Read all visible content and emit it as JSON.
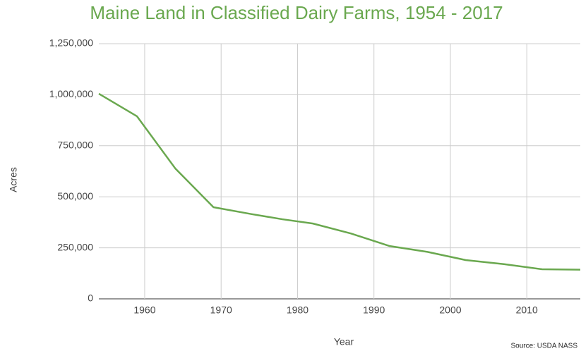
{
  "chart_data": {
    "type": "line",
    "title": "Maine Land in Classified Dairy Farms, 1954 - 2017",
    "x_label": "Year",
    "y_label": "Acres",
    "source": "Source: USDA NASS",
    "x": [
      1954,
      1959,
      1964,
      1969,
      1974,
      1978,
      1982,
      1987,
      1992,
      1997,
      2002,
      2007,
      2012,
      2017
    ],
    "series": [
      {
        "name": "Acres",
        "color": "#6aa84f",
        "values": [
          1005000,
          894000,
          639000,
          449000,
          415000,
          390000,
          369000,
          320000,
          259000,
          230000,
          190000,
          170000,
          145000,
          143000
        ]
      }
    ],
    "xlim": [
      1954,
      2017
    ],
    "xticks": [
      1960,
      1970,
      1980,
      1990,
      2000,
      2010
    ],
    "ylim": [
      0,
      1250000
    ],
    "yticks": [
      0,
      {
        "value": 250000,
        "label": "250,000"
      },
      {
        "value": 500000,
        "label": "500,000"
      },
      {
        "value": 750000,
        "label": "750,000"
      },
      {
        "value": 1000000,
        "label": "1,000,000"
      },
      {
        "value": 1250000,
        "label": "1,250,000"
      }
    ],
    "grid": true
  }
}
